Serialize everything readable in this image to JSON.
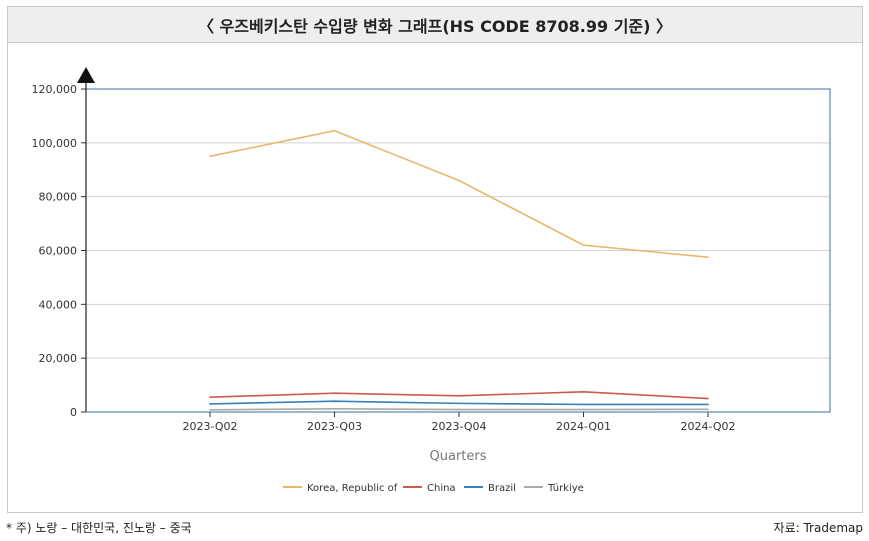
{
  "title": "〈 우즈베키스탄 수입량 변화 그래프(HS CODE 8708.99 기준) 〉",
  "footnote": "* 주) 노랑 – 대한민국, 진노랑 – 중국",
  "source": "자료: Trademap",
  "chart_data": {
    "type": "line",
    "title": "",
    "xlabel": "Quarters",
    "ylabel": "",
    "categories": [
      "2023-Q02",
      "2023-Q03",
      "2023-Q04",
      "2024-Q01",
      "2024-Q02"
    ],
    "ylim": [
      0,
      120000
    ],
    "yticks": [
      0,
      20000,
      40000,
      60000,
      80000,
      100000,
      120000
    ],
    "ytick_labels": [
      "0",
      "20,000",
      "40,000",
      "60,000",
      "80,000",
      "100,000",
      "120,000"
    ],
    "grid": true,
    "legend_position": "bottom",
    "series": [
      {
        "name": "Korea, Republic of",
        "color": "#e8b86d",
        "values": [
          95000,
          104500,
          86000,
          62000,
          57500
        ]
      },
      {
        "name": "China",
        "color": "#cc5c4a",
        "values": [
          5500,
          7000,
          6000,
          7500,
          5000
        ]
      },
      {
        "name": "Brazil",
        "color": "#3a7fb5",
        "values": [
          3000,
          4000,
          3200,
          2800,
          2800
        ]
      },
      {
        "name": "Türkiye",
        "color": "#aaaaaa",
        "values": [
          800,
          1200,
          900,
          900,
          1000
        ]
      }
    ]
  }
}
